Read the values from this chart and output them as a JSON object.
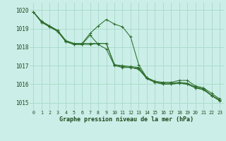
{
  "title": "Graphe pression niveau de la mer (hPa)",
  "bg_color": "#cceee8",
  "grid_color": "#aaddcc",
  "line_color": "#2d6e2d",
  "text_color": "#1a4a1a",
  "xlim": [
    -0.5,
    23.5
  ],
  "ylim": [
    1014.6,
    1020.4
  ],
  "yticks": [
    1015,
    1016,
    1017,
    1018,
    1019,
    1020
  ],
  "xticks": [
    0,
    1,
    2,
    3,
    4,
    5,
    6,
    7,
    8,
    9,
    10,
    11,
    12,
    13,
    14,
    15,
    16,
    17,
    18,
    19,
    20,
    21,
    22,
    23
  ],
  "series": [
    [
      1019.9,
      1019.4,
      1019.15,
      1018.9,
      1018.35,
      1018.2,
      1018.2,
      1018.75,
      1019.15,
      1019.5,
      1019.25,
      1019.1,
      1018.55,
      1017.05,
      1016.35,
      1016.15,
      1016.1,
      1016.1,
      1016.2,
      1016.2,
      1015.9,
      1015.8,
      1015.5,
      1015.2
    ],
    [
      1019.9,
      1019.4,
      1019.15,
      1018.9,
      1018.35,
      1018.2,
      1018.2,
      1018.2,
      1018.2,
      1018.2,
      1017.05,
      1017.0,
      1016.95,
      1016.9,
      1016.35,
      1016.15,
      1016.05,
      1016.05,
      1016.1,
      1016.05,
      1015.85,
      1015.75,
      1015.4,
      1015.15
    ],
    [
      1019.9,
      1019.35,
      1019.1,
      1018.85,
      1018.3,
      1018.15,
      1018.15,
      1018.15,
      1018.2,
      1018.2,
      1017.05,
      1016.95,
      1016.9,
      1016.85,
      1016.3,
      1016.1,
      1016.0,
      1016.0,
      1016.05,
      1016.0,
      1015.8,
      1015.7,
      1015.38,
      1015.1
    ],
    [
      1019.9,
      1019.35,
      1019.1,
      1018.85,
      1018.3,
      1018.15,
      1018.15,
      1018.65,
      1018.15,
      1017.9,
      1017.0,
      1016.9,
      1016.9,
      1016.8,
      1016.3,
      1016.1,
      1016.0,
      1016.0,
      1016.05,
      1016.0,
      1015.8,
      1015.7,
      1015.38,
      1015.1
    ]
  ]
}
